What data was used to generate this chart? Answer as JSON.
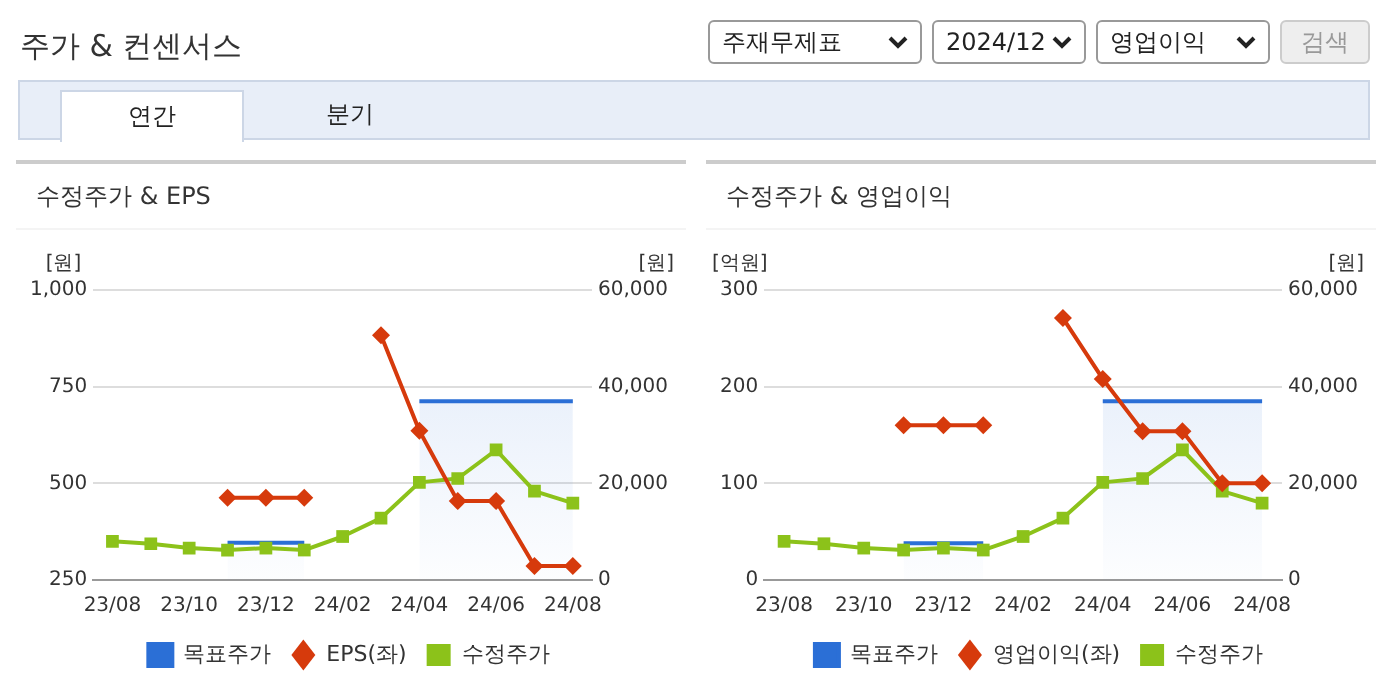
{
  "chart_data": [
    {
      "type": "other",
      "title": "주가 & 컨센서스",
      "annotations": [
        "주재무제표",
        "2024/12",
        "영업이익",
        "검색",
        "연간",
        "분기"
      ]
    },
    {
      "type": "line",
      "title": "수정주가 & EPS",
      "ylabel": "[원]",
      "y2label": "[원]",
      "categories": [
        "23/08",
        null,
        "23/10",
        null,
        "23/12",
        null,
        "24/02",
        null,
        "24/04",
        null,
        "24/06",
        null,
        "24/08"
      ],
      "ylim": [
        250,
        1000
      ],
      "yticks": [
        250,
        500,
        750,
        {
          "value": 1000,
          "label": "1,000"
        }
      ],
      "y2lim": [
        0,
        60000
      ],
      "y2ticks": [
        0,
        {
          "value": 20000,
          "label": "20,000"
        },
        {
          "value": 40000,
          "label": "40,000"
        },
        {
          "value": 60000,
          "label": "60,000"
        }
      ],
      "grid": "y",
      "legend": "bottom",
      "series": [
        {
          "name": "목표주가",
          "type": "area",
          "axis": "y2",
          "color": "#2b6fd6",
          "marker": "none",
          "values": [
            null,
            null,
            null,
            7700,
            7700,
            7700,
            null,
            null,
            37000,
            37000,
            37000,
            37000,
            37000
          ]
        },
        {
          "name": "EPS(좌)",
          "type": "line",
          "color": "#d63a0c",
          "marker": "diamond",
          "values": [
            null,
            null,
            null,
            463,
            463,
            463,
            null,
            883,
            636,
            454,
            454,
            286,
            286
          ]
        },
        {
          "name": "수정주가",
          "type": "line",
          "axis": "y2",
          "color": "#8cc21a",
          "marker": "square",
          "values": [
            8000,
            7500,
            6600,
            6200,
            6600,
            6200,
            9000,
            12800,
            20200,
            21000,
            26900,
            18400,
            15900
          ]
        }
      ]
    },
    {
      "type": "line",
      "title": "수정주가 & 영업이익",
      "ylabel": "[억원]",
      "y2label": "[원]",
      "categories": [
        "23/08",
        null,
        "23/10",
        null,
        "23/12",
        null,
        "24/02",
        null,
        "24/04",
        null,
        "24/06",
        null,
        "24/08"
      ],
      "ylim": [
        0,
        300
      ],
      "yticks": [
        0,
        100,
        200,
        300
      ],
      "y2lim": [
        0,
        60000
      ],
      "y2ticks": [
        0,
        {
          "value": 20000,
          "label": "20,000"
        },
        {
          "value": 40000,
          "label": "40,000"
        },
        {
          "value": 60000,
          "label": "60,000"
        }
      ],
      "grid": "y",
      "legend": "bottom",
      "series": [
        {
          "name": "목표주가",
          "type": "area",
          "axis": "y2",
          "color": "#2b6fd6",
          "marker": "none",
          "values": [
            null,
            null,
            null,
            7600,
            7600,
            7600,
            null,
            null,
            37000,
            37000,
            37000,
            37000,
            37000
          ]
        },
        {
          "name": "영업이익(좌)",
          "type": "line",
          "color": "#d63a0c",
          "marker": "diamond",
          "values": [
            null,
            null,
            null,
            160,
            160,
            160,
            null,
            271,
            208,
            154,
            154,
            100,
            100
          ]
        },
        {
          "name": "수정주가",
          "type": "line",
          "axis": "y2",
          "color": "#8cc21a",
          "marker": "square",
          "values": [
            8000,
            7500,
            6600,
            6200,
            6600,
            6200,
            9000,
            12800,
            20200,
            21000,
            26900,
            18400,
            15900
          ]
        }
      ]
    }
  ]
}
